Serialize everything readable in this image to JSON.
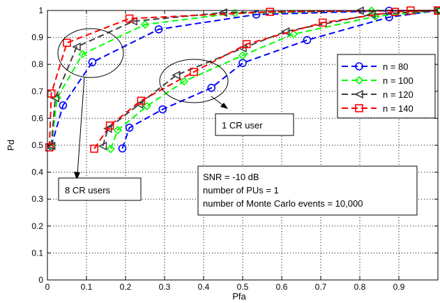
{
  "chart_data": {
    "type": "line",
    "title": "",
    "xlabel": "Pfa",
    "ylabel": "Pd",
    "xlim": [
      0,
      1
    ],
    "ylim": [
      0,
      1
    ],
    "grid": true,
    "legend_position": "top-right",
    "x_ticks": [
      "0",
      "0.1",
      "0.2",
      "0.3",
      "0.4",
      "0.5",
      "0.6",
      "0.7",
      "0.8",
      "0.9"
    ],
    "y_ticks": [
      "0",
      "0.1",
      "0.2",
      "0.3",
      "0.4",
      "0.5",
      "0.6",
      "0.7",
      "0.8",
      "0.9",
      "1"
    ],
    "series": [
      {
        "name": "n = 80",
        "color": "#0000ff",
        "marker": "circle",
        "groups": [
          {
            "x": [
              0.01,
              0.04,
              0.115,
              0.285,
              0.535,
              0.875,
              1.0
            ],
            "y": [
              0.497,
              0.648,
              0.808,
              0.93,
              0.985,
              0.999,
              1.0
            ]
          },
          {
            "x": [
              0.192,
              0.21,
              0.295,
              0.42,
              0.5,
              0.665,
              0.875,
              1.0
            ],
            "y": [
              0.488,
              0.565,
              0.633,
              0.713,
              0.805,
              0.89,
              0.975,
              1.0
            ]
          }
        ]
      },
      {
        "name": "n = 100",
        "color": "#00ff00",
        "marker": "diamond",
        "groups": [
          {
            "x": [
              0.01,
              0.025,
              0.09,
              0.25,
              0.48,
              0.83,
              1.0
            ],
            "y": [
              0.497,
              0.676,
              0.838,
              0.948,
              0.99,
              0.999,
              1.0
            ]
          },
          {
            "x": [
              0.162,
              0.18,
              0.255,
              0.35,
              0.5,
              0.63,
              0.84,
              1.0
            ],
            "y": [
              0.486,
              0.556,
              0.645,
              0.737,
              0.833,
              0.912,
              0.978,
              1.0
            ]
          }
        ]
      },
      {
        "name": "n = 120",
        "color": "#404040",
        "marker": "triangle-left",
        "groups": [
          {
            "x": [
              0.01,
              0.02,
              0.075,
              0.22,
              0.45,
              0.8,
              1.0
            ],
            "y": [
              0.497,
              0.675,
              0.865,
              0.96,
              0.992,
              0.999,
              1.0
            ]
          },
          {
            "x": [
              0.142,
              0.155,
              0.235,
              0.33,
              0.5,
              0.61,
              0.83,
              1.0
            ],
            "y": [
              0.497,
              0.562,
              0.652,
              0.76,
              0.86,
              0.922,
              0.985,
              1.0
            ]
          }
        ]
      },
      {
        "name": "n = 140",
        "color": "#ff0000",
        "marker": "square",
        "groups": [
          {
            "x": [
              0.005,
              0.01,
              0.05,
              0.21,
              0.57,
              0.93,
              1.0
            ],
            "y": [
              0.492,
              0.692,
              0.88,
              0.97,
              0.995,
              1.0,
              1.0
            ]
          },
          {
            "x": [
              0.12,
              0.16,
              0.24,
              0.375,
              0.51,
              0.705,
              0.89,
              1.0
            ],
            "y": [
              0.487,
              0.573,
              0.665,
              0.772,
              0.875,
              0.955,
              0.995,
              1.0
            ]
          }
        ]
      }
    ],
    "annotations": [
      {
        "id": "snr",
        "lines": [
          "SNR = -10 dB",
          "number of PUs = 1",
          "number of Monte Carlo events = 10,000"
        ]
      },
      {
        "id": "one-cr",
        "text": "1 CR user"
      },
      {
        "id": "eight-cr",
        "text": "8 CR users"
      }
    ]
  }
}
